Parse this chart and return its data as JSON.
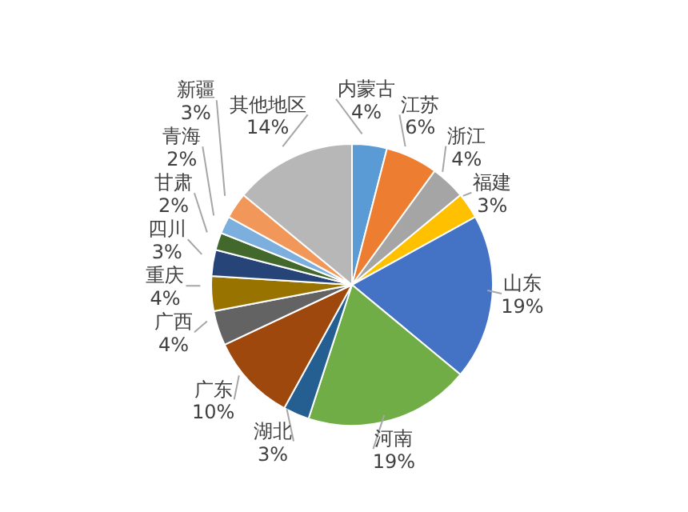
{
  "chart_data": {
    "type": "pie",
    "categories": [
      "内蒙古",
      "江苏",
      "浙江",
      "福建",
      "山东",
      "河南",
      "湖北",
      "广东",
      "广西",
      "重庆",
      "四川",
      "甘肃",
      "青海",
      "新疆",
      "其他地区"
    ],
    "values": [
      4,
      6,
      4,
      3,
      19,
      19,
      3,
      10,
      4,
      4,
      3,
      2,
      2,
      3,
      14
    ],
    "value_labels": [
      "4%",
      "6%",
      "4%",
      "3%",
      "19%",
      "19%",
      "3%",
      "10%",
      "4%",
      "4%",
      "3%",
      "2%",
      "2%",
      "3%",
      "14%"
    ],
    "colors": [
      "#5b9bd5",
      "#ed7d31",
      "#a5a5a5",
      "#ffc000",
      "#4472c4",
      "#70ad47",
      "#255e91",
      "#9e480e",
      "#636363",
      "#997300",
      "#264478",
      "#43682b",
      "#7cafdd",
      "#f1975a",
      "#b7b7b7"
    ],
    "legend": false
  }
}
